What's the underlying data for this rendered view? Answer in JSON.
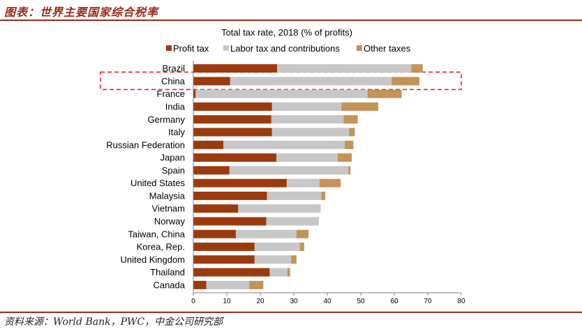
{
  "figure_title": "图表：世界主要国家综合税率",
  "source_note": "资料来源：World Bank，PWC，中金公司研究部",
  "colors": {
    "profit": "#9c3a0f",
    "labor": "#c7c7c7",
    "other": "#c49357",
    "highlight": "#e8231f",
    "rule": "#9b2a1b",
    "axis": "#7f7f7f"
  },
  "highlight_category": "China",
  "chart_data": {
    "type": "bar",
    "orientation": "horizontal",
    "stacked": true,
    "title": "Total tax rate, 2018 (% of profits)",
    "xlabel": "",
    "ylabel": "",
    "xlim": [
      0,
      80
    ],
    "xticks": [
      0,
      10,
      20,
      30,
      40,
      50,
      60,
      70,
      80
    ],
    "grid": false,
    "legend_position": "top",
    "categories": [
      "Brazil",
      "China",
      "France",
      "India",
      "Germany",
      "Italy",
      "Russian Federation",
      "Japan",
      "Spain",
      "United States",
      "Malaysia",
      "Vietnam",
      "Norway",
      "Taiwan, China",
      "Korea, Rep.",
      "United Kingdom",
      "Thailand",
      "Canada"
    ],
    "series": [
      {
        "name": "Profit tax",
        "values": [
          25.0,
          11.0,
          0.7,
          23.5,
          23.3,
          23.5,
          9.0,
          24.8,
          10.8,
          27.9,
          22.0,
          13.4,
          21.8,
          12.7,
          18.3,
          18.3,
          22.8,
          3.9
        ]
      },
      {
        "name": "Labor tax and contributions",
        "values": [
          40.1,
          48.2,
          51.3,
          20.7,
          21.6,
          23.0,
          36.2,
          18.3,
          35.5,
          9.8,
          16.2,
          24.6,
          15.7,
          18.1,
          13.5,
          10.9,
          5.3,
          12.8
        ]
      },
      {
        "name": "Other taxes",
        "values": [
          3.4,
          8.3,
          10.2,
          11.0,
          4.2,
          1.7,
          2.6,
          4.2,
          0.6,
          6.3,
          1.2,
          0.0,
          0.0,
          3.6,
          1.3,
          1.6,
          0.8,
          4.2
        ]
      }
    ]
  }
}
